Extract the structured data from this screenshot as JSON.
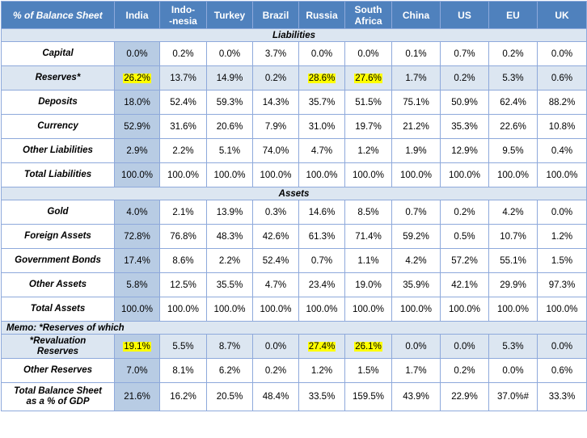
{
  "header": {
    "corner": "% of Balance Sheet",
    "columns": [
      "India",
      "Indo-\n-nesia",
      "Turkey",
      "Brazil",
      "Russia",
      "South\nAfrica",
      "China",
      "US",
      "EU",
      "UK"
    ]
  },
  "sections": {
    "liabilities": "Liabilities",
    "assets": "Assets",
    "memo": "Memo: *Reserves of which"
  },
  "rows": {
    "capital": {
      "label": "Capital",
      "values": [
        "0.0%",
        "0.2%",
        "0.0%",
        "3.7%",
        "0.0%",
        "0.0%",
        "0.1%",
        "0.7%",
        "0.2%",
        "0.0%"
      ]
    },
    "reserves": {
      "label": "Reserves*",
      "values": [
        "26.2%",
        "13.7%",
        "14.9%",
        "0.2%",
        "28.6%",
        "27.6%",
        "1.7%",
        "0.2%",
        "5.3%",
        "0.6%"
      ]
    },
    "deposits": {
      "label": "Deposits",
      "values": [
        "18.0%",
        "52.4%",
        "59.3%",
        "14.3%",
        "35.7%",
        "51.5%",
        "75.1%",
        "50.9%",
        "62.4%",
        "88.2%"
      ]
    },
    "currency": {
      "label": "Currency",
      "values": [
        "52.9%",
        "31.6%",
        "20.6%",
        "7.9%",
        "31.0%",
        "19.7%",
        "21.2%",
        "35.3%",
        "22.6%",
        "10.8%"
      ]
    },
    "other_liabilities": {
      "label": "Other Liabilities",
      "values": [
        "2.9%",
        "2.2%",
        "5.1%",
        "74.0%",
        "4.7%",
        "1.2%",
        "1.9%",
        "12.9%",
        "9.5%",
        "0.4%"
      ]
    },
    "total_liabilities": {
      "label": "Total Liabilities",
      "values": [
        "100.0%",
        "100.0%",
        "100.0%",
        "100.0%",
        "100.0%",
        "100.0%",
        "100.0%",
        "100.0%",
        "100.0%",
        "100.0%"
      ]
    },
    "gold": {
      "label": "Gold",
      "values": [
        "4.0%",
        "2.1%",
        "13.9%",
        "0.3%",
        "14.6%",
        "8.5%",
        "0.7%",
        "0.2%",
        "4.2%",
        "0.0%"
      ]
    },
    "foreign_assets": {
      "label": "Foreign Assets",
      "values": [
        "72.8%",
        "76.8%",
        "48.3%",
        "42.6%",
        "61.3%",
        "71.4%",
        "59.2%",
        "0.5%",
        "10.7%",
        "1.2%"
      ]
    },
    "government_bonds": {
      "label": "Government Bonds",
      "values": [
        "17.4%",
        "8.6%",
        "2.2%",
        "52.4%",
        "0.7%",
        "1.1%",
        "4.2%",
        "57.2%",
        "55.1%",
        "1.5%"
      ]
    },
    "other_assets": {
      "label": "Other Assets",
      "values": [
        "5.8%",
        "12.5%",
        "35.5%",
        "4.7%",
        "23.4%",
        "19.0%",
        "35.9%",
        "42.1%",
        "29.9%",
        "97.3%"
      ]
    },
    "total_assets": {
      "label": "Total Assets",
      "values": [
        "100.0%",
        "100.0%",
        "100.0%",
        "100.0%",
        "100.0%",
        "100.0%",
        "100.0%",
        "100.0%",
        "100.0%",
        "100.0%"
      ]
    },
    "revaluation_reserves": {
      "label": "*Revaluation\nReserves",
      "values": [
        "19.1%",
        "5.5%",
        "8.7%",
        "0.0%",
        "27.4%",
        "26.1%",
        "0.0%",
        "0.0%",
        "5.3%",
        "0.0%"
      ]
    },
    "other_reserves": {
      "label": "Other Reserves",
      "values": [
        "7.0%",
        "8.1%",
        "6.2%",
        "0.2%",
        "1.2%",
        "1.5%",
        "1.7%",
        "0.2%",
        "0.0%",
        "0.6%"
      ]
    },
    "total_bs_gdp": {
      "label": "Total Balance Sheet\nas a % of GDP",
      "values": [
        "21.6%",
        "16.2%",
        "20.5%",
        "48.4%",
        "33.5%",
        "159.5%",
        "43.9%",
        "22.9%",
        "37.0%#",
        "33.3%"
      ]
    }
  },
  "highlight_color": "#ffff00",
  "header_color": "#4f81bd"
}
